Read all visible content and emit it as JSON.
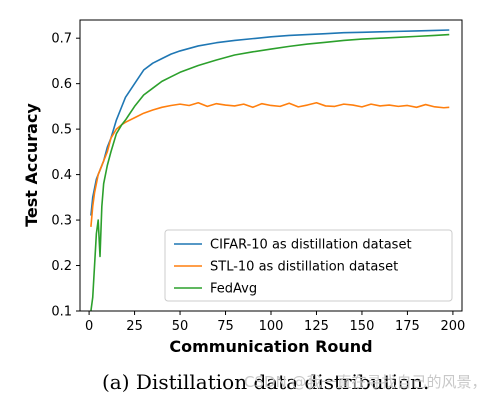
{
  "chart_data": {
    "type": "line",
    "xlabel": "Communication Round",
    "ylabel": "Test Accuracy",
    "xlim": [
      -5,
      205
    ],
    "ylim": [
      0.1,
      0.74
    ],
    "xticks": [
      0,
      25,
      50,
      75,
      100,
      125,
      150,
      175,
      200
    ],
    "yticks": [
      0.1,
      0.2,
      0.3,
      0.4,
      0.5,
      0.6,
      0.7
    ],
    "grid": false,
    "legend_position": "lower-right",
    "series": [
      {
        "name": "CIFAR-10 as distillation dataset",
        "color": "#1f77b4",
        "x": [
          1,
          2,
          3,
          4,
          5,
          6,
          8,
          10,
          12,
          15,
          18,
          20,
          25,
          30,
          35,
          40,
          45,
          50,
          60,
          70,
          80,
          90,
          100,
          110,
          120,
          130,
          140,
          150,
          160,
          170,
          180,
          190,
          198
        ],
        "y": [
          0.31,
          0.35,
          0.37,
          0.39,
          0.4,
          0.41,
          0.43,
          0.46,
          0.48,
          0.52,
          0.55,
          0.57,
          0.6,
          0.63,
          0.645,
          0.655,
          0.665,
          0.672,
          0.683,
          0.69,
          0.695,
          0.699,
          0.703,
          0.706,
          0.708,
          0.71,
          0.712,
          0.713,
          0.714,
          0.715,
          0.716,
          0.717,
          0.718
        ]
      },
      {
        "name": "STL-10 as distillation dataset",
        "color": "#ff7f0e",
        "x": [
          1,
          2,
          3,
          4,
          5,
          6,
          8,
          10,
          12,
          15,
          18,
          20,
          25,
          30,
          35,
          40,
          45,
          50,
          55,
          60,
          65,
          70,
          75,
          80,
          85,
          90,
          95,
          100,
          105,
          110,
          115,
          120,
          125,
          130,
          135,
          140,
          145,
          150,
          155,
          160,
          165,
          170,
          175,
          180,
          185,
          190,
          195,
          198
        ],
        "y": [
          0.285,
          0.33,
          0.36,
          0.38,
          0.4,
          0.41,
          0.43,
          0.45,
          0.48,
          0.5,
          0.51,
          0.515,
          0.525,
          0.535,
          0.542,
          0.548,
          0.552,
          0.555,
          0.552,
          0.558,
          0.55,
          0.556,
          0.553,
          0.551,
          0.555,
          0.548,
          0.556,
          0.552,
          0.55,
          0.557,
          0.549,
          0.553,
          0.558,
          0.551,
          0.55,
          0.555,
          0.553,
          0.549,
          0.555,
          0.551,
          0.553,
          0.55,
          0.552,
          0.548,
          0.554,
          0.549,
          0.547,
          0.548
        ]
      },
      {
        "name": "FedAvg",
        "color": "#2ca02c",
        "x": [
          1,
          2,
          3,
          4,
          5,
          6,
          7,
          8,
          10,
          12,
          15,
          18,
          20,
          25,
          30,
          35,
          40,
          45,
          50,
          60,
          70,
          80,
          90,
          100,
          110,
          120,
          130,
          140,
          150,
          160,
          170,
          180,
          190,
          198
        ],
        "y": [
          0.1,
          0.13,
          0.2,
          0.27,
          0.3,
          0.22,
          0.33,
          0.38,
          0.42,
          0.45,
          0.49,
          0.51,
          0.52,
          0.55,
          0.575,
          0.59,
          0.605,
          0.615,
          0.625,
          0.64,
          0.652,
          0.663,
          0.67,
          0.676,
          0.682,
          0.687,
          0.691,
          0.695,
          0.698,
          0.7,
          0.702,
          0.704,
          0.706,
          0.708
        ]
      }
    ]
  },
  "caption": "(a) Distillation data distribution.",
  "watermark": "CSDN @我一直在寻找自己的风景，"
}
